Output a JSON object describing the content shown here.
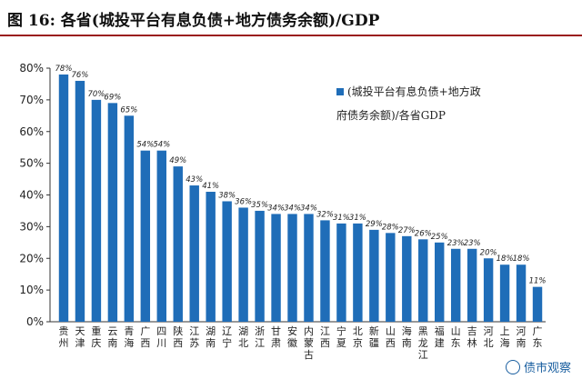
{
  "header": {
    "title": "图 16:   各省(城投平台有息负债+地方债务余额)/GDP"
  },
  "chart_data": {
    "type": "bar",
    "title": "各省(城投平台有息负债+地方债务余额)/GDP",
    "legend": {
      "label_line1": "(城投平台有息负债+地方政",
      "label_line2": "府债务余额)/各省GDP",
      "placement": "top-right"
    },
    "ylim": [
      0,
      80
    ],
    "yticks": [
      "0%",
      "10%",
      "20%",
      "30%",
      "40%",
      "50%",
      "60%",
      "70%",
      "80%"
    ],
    "categories": [
      "贵州",
      "天津",
      "重庆",
      "云南",
      "青海",
      "广西",
      "四川",
      "陕西",
      "江苏",
      "湖南",
      "辽宁",
      "湖北",
      "浙江",
      "甘肃",
      "安徽",
      "内蒙古",
      "江西",
      "宁夏",
      "北京",
      "新疆",
      "山西",
      "海南",
      "黑龙江",
      "福建",
      "山东",
      "吉林",
      "河北",
      "上海",
      "河南",
      "广东"
    ],
    "values": [
      78,
      76,
      70,
      69,
      65,
      54,
      54,
      49,
      43,
      41,
      38,
      36,
      35,
      34,
      34,
      34,
      32,
      31,
      31,
      29,
      28,
      27,
      26,
      25,
      23,
      23,
      20,
      18,
      18,
      11
    ],
    "value_labels": [
      "78%",
      "76%",
      "70%",
      "69%",
      "65%",
      "54%",
      "54%",
      "49%",
      "43%",
      "41%",
      "38%",
      "36%",
      "35%",
      "34%",
      "34%",
      "34%",
      "32%",
      "31%",
      "31%",
      "29%",
      "28%",
      "27%",
      "26%",
      "25%",
      "23%",
      "23%",
      "20%",
      "18%",
      "18%",
      "11%"
    ],
    "bar_color": "#1f6db8"
  },
  "watermark": {
    "text": "债市观察"
  }
}
